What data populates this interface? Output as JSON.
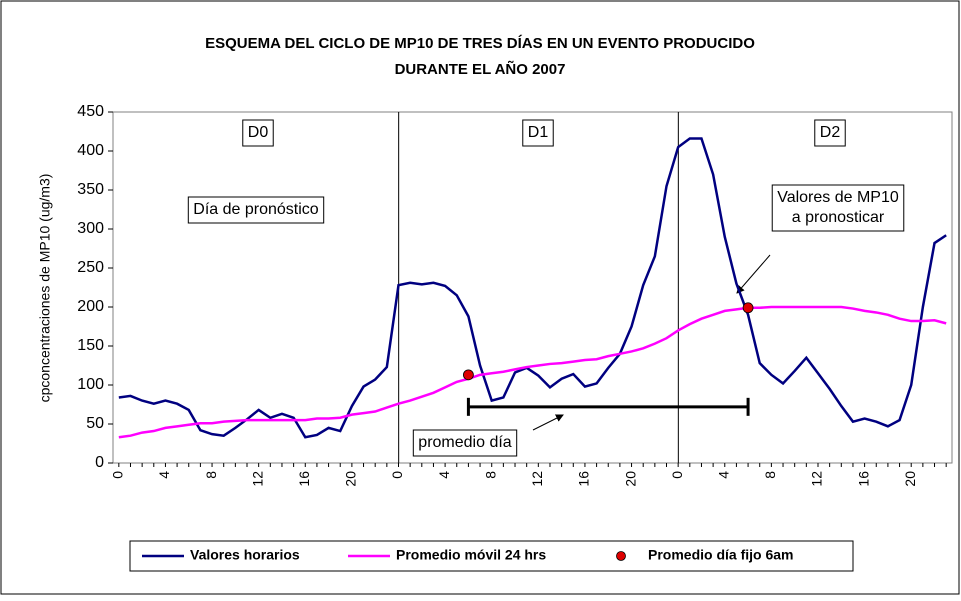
{
  "chart_data": {
    "type": "line",
    "title": [
      "ESQUEMA DEL CICLO DE MP10 DE TRES DÍAS EN UN EVENTO PRODUCIDO",
      "DURANTE EL AÑO 2007"
    ],
    "y_label": "cpconcentraciones de MP10 (ug/m3)",
    "categories": [
      "0",
      null,
      null,
      null,
      "4",
      null,
      null,
      null,
      "8",
      null,
      null,
      null,
      "12",
      null,
      null,
      null,
      "16",
      null,
      null,
      null,
      "20",
      null,
      null,
      null,
      "0",
      null,
      null,
      null,
      "4",
      null,
      null,
      null,
      "8",
      null,
      null,
      null,
      "12",
      null,
      null,
      null,
      "16",
      null,
      null,
      null,
      "20",
      null,
      null,
      null,
      "0",
      null,
      null,
      null,
      "4",
      null,
      null,
      null,
      "8",
      null,
      null,
      null,
      "12",
      null,
      null,
      null,
      "16",
      null,
      null,
      null,
      "20",
      null,
      null,
      null
    ],
    "ylim": [
      0,
      450
    ],
    "yticks": [
      0,
      50,
      100,
      150,
      200,
      250,
      300,
      350,
      400,
      450
    ],
    "series": [
      {
        "name": "Valores horarios",
        "color": "#000080",
        "type": "line",
        "values": [
          84,
          86,
          80,
          76,
          80,
          76,
          68,
          42,
          37,
          35,
          45,
          56,
          68,
          58,
          63,
          58,
          33,
          36,
          45,
          41,
          73,
          98,
          107,
          123,
          228,
          231,
          229,
          231,
          227,
          215,
          188,
          125,
          80,
          84,
          116,
          122,
          112,
          97,
          108,
          114,
          98,
          102,
          122,
          140,
          175,
          228,
          265,
          355,
          405,
          416,
          416,
          370,
          290,
          230,
          190,
          128,
          113,
          102,
          118,
          135,
          115,
          95,
          73,
          53,
          57,
          53,
          47,
          55,
          100,
          200,
          282,
          292
        ]
      },
      {
        "name": "Promedio móvil 24 hrs",
        "color": "#ff00ff",
        "type": "line",
        "values": [
          33,
          35,
          39,
          41,
          45,
          47,
          49,
          51,
          51,
          53,
          54,
          55,
          55,
          55,
          55,
          55,
          55,
          57,
          57,
          58,
          62,
          64,
          66,
          71,
          76,
          80,
          85,
          90,
          97,
          104,
          108,
          113,
          115,
          117,
          120,
          123,
          125,
          127,
          128,
          130,
          132,
          133,
          137,
          140,
          143,
          147,
          153,
          160,
          170,
          178,
          185,
          190,
          195,
          197,
          199,
          199,
          200,
          200,
          200,
          200,
          200,
          200,
          200,
          198,
          195,
          193,
          190,
          185,
          182,
          182,
          183,
          179
        ]
      },
      {
        "name": "Promedio día fijo 6am",
        "color": "#dd0000",
        "type": "scatter",
        "values": [
          null,
          null,
          null,
          null,
          null,
          null,
          null,
          null,
          null,
          null,
          null,
          null,
          null,
          null,
          null,
          null,
          null,
          null,
          null,
          null,
          null,
          null,
          null,
          null,
          null,
          null,
          null,
          null,
          null,
          null,
          113,
          null,
          null,
          null,
          null,
          null,
          null,
          null,
          null,
          null,
          null,
          null,
          null,
          null,
          null,
          null,
          null,
          null,
          null,
          null,
          null,
          null,
          null,
          null,
          199,
          null,
          null,
          null,
          null,
          null,
          null,
          null,
          null,
          null,
          null,
          null,
          null,
          null,
          null,
          null,
          null,
          null
        ]
      }
    ],
    "annotations": [
      [
        "D0"
      ],
      [
        "D1"
      ],
      [
        "D2"
      ],
      [
        "Día de pronóstico"
      ],
      [
        "Valores de MP10",
        "a pronosticar"
      ],
      [
        "promedio día"
      ]
    ],
    "legend": "bottom"
  }
}
